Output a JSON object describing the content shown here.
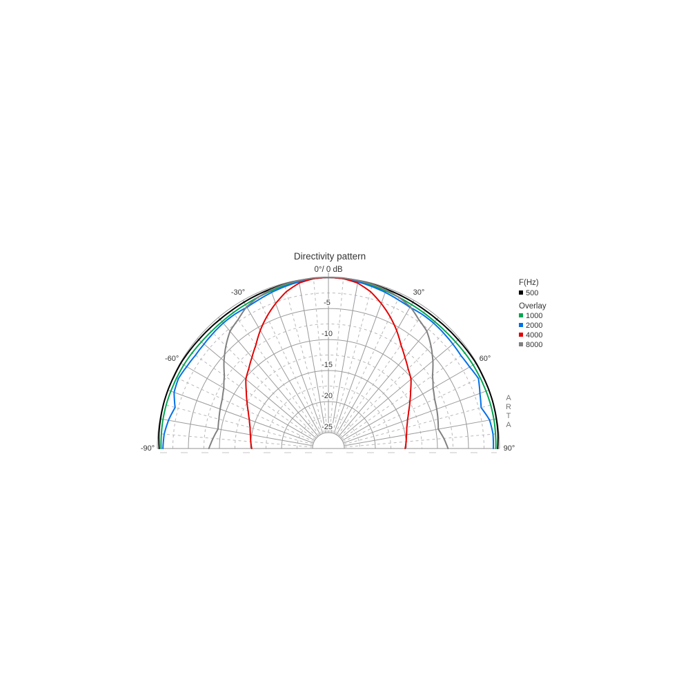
{
  "page": {
    "background": "#ffffff"
  },
  "chart_data": {
    "type": "polar-directivity",
    "title": "Directivity pattern",
    "top_label": "0°/ 0 dB",
    "watermark": "ARTA",
    "axis": {
      "angle_min_deg": -90,
      "angle_max_deg": 90,
      "db_outer": 0,
      "db_inner_circle": -25,
      "solid_angle_step_deg": 10,
      "dashed_angle_step_deg": 5,
      "solid_db_step": 5,
      "dashed_db_step": 2.5,
      "db_tick_labels": [
        {
          "db": -5,
          "label": "-5"
        },
        {
          "db": -10,
          "label": "-10"
        },
        {
          "db": -15,
          "label": "-15"
        },
        {
          "db": -20,
          "label": "-20"
        },
        {
          "db": -25,
          "label": "-25"
        }
      ],
      "angle_tick_labels": [
        {
          "angle": -30,
          "label": "-30°"
        },
        {
          "angle": 30,
          "label": "30°"
        },
        {
          "angle": -60,
          "label": "-60°"
        },
        {
          "angle": 60,
          "label": "60°"
        },
        {
          "angle": -90,
          "label": "-90°"
        },
        {
          "angle": 90,
          "label": "90°"
        }
      ]
    },
    "colors": {
      "grid_solid": "#999999",
      "grid_dashed": "#b8b8b8",
      "baseline": "#909090",
      "under_dash": "#c4c4c4",
      "label_text": "#333333"
    },
    "legend": {
      "header": "F(Hz)",
      "primary": {
        "label": "500",
        "color": "#000000"
      },
      "overlay_header": "Overlay",
      "overlays": [
        {
          "label": "1000",
          "color": "#00a650"
        },
        {
          "label": "2000",
          "color": "#0070e8"
        },
        {
          "label": "4000",
          "color": "#e30000"
        },
        {
          "label": "8000",
          "color": "#808080"
        }
      ]
    },
    "angles_deg": [
      -90,
      -85,
      -80,
      -75,
      -70,
      -65,
      -60,
      -55,
      -50,
      -45,
      -40,
      -35,
      -30,
      -25,
      -20,
      -15,
      -10,
      -5,
      0,
      5,
      10,
      15,
      20,
      25,
      30,
      35,
      40,
      45,
      50,
      55,
      60,
      65,
      70,
      75,
      80,
      85,
      90
    ],
    "series": [
      {
        "name": "500",
        "color": "#000000",
        "db": [
          -0.3,
          -0.15,
          -0.1,
          -0.05,
          -0.05,
          -0.1,
          -0.1,
          -0.2,
          -0.3,
          -0.35,
          -0.4,
          -0.4,
          -0.35,
          -0.3,
          -0.25,
          -0.15,
          -0.1,
          -0.05,
          0,
          -0.05,
          -0.1,
          -0.15,
          -0.25,
          -0.3,
          -0.35,
          -0.4,
          -0.4,
          -0.35,
          -0.3,
          -0.2,
          -0.1,
          -0.1,
          -0.05,
          -0.05,
          -0.1,
          -0.15,
          -0.3
        ]
      },
      {
        "name": "1000",
        "color": "#00a650",
        "db": [
          -0.6,
          -0.55,
          -0.5,
          -0.5,
          -0.55,
          -0.6,
          -0.65,
          -0.75,
          -0.85,
          -0.9,
          -0.9,
          -0.85,
          -0.8,
          -0.7,
          -0.55,
          -0.4,
          -0.25,
          -0.1,
          0,
          -0.1,
          -0.25,
          -0.4,
          -0.55,
          -0.7,
          -0.8,
          -0.85,
          -0.9,
          -0.9,
          -0.85,
          -0.75,
          -0.65,
          -0.6,
          -0.55,
          -0.5,
          -0.5,
          -0.55,
          -0.6
        ]
      },
      {
        "name": "2000",
        "color": "#0070e8",
        "db": [
          -0.9,
          -1.0,
          -1.4,
          -2.0,
          -1.1,
          -0.9,
          -1.2,
          -1.4,
          -1.4,
          -1.3,
          -1.2,
          -1.2,
          -1.3,
          -1.1,
          -0.8,
          -0.55,
          -0.3,
          -0.1,
          0,
          -0.1,
          -0.3,
          -0.55,
          -0.8,
          -1.1,
          -1.3,
          -1.2,
          -1.2,
          -1.3,
          -1.4,
          -1.5,
          -1.3,
          -0.9,
          -1.6,
          -2.1,
          -1.2,
          -0.95,
          -1.0
        ]
      },
      {
        "name": "4000",
        "color": "#e30000",
        "db": [
          -15.2,
          -15.0,
          -14.8,
          -14.5,
          -14.0,
          -13.3,
          -12.4,
          -11.4,
          -10.2,
          -9.4,
          -8.4,
          -7.2,
          -5.6,
          -4.1,
          -2.7,
          -1.4,
          -0.5,
          -0.1,
          0,
          -0.1,
          -0.5,
          -1.4,
          -2.7,
          -4.1,
          -5.6,
          -7.2,
          -8.4,
          -9.4,
          -10.2,
          -11.4,
          -12.4,
          -13.3,
          -14.0,
          -14.5,
          -14.8,
          -15.0,
          -15.2
        ]
      },
      {
        "name": "8000",
        "color": "#808080",
        "db": [
          -8.3,
          -8.9,
          -9.5,
          -9.3,
          -9.0,
          -8.7,
          -8.1,
          -7.1,
          -5.6,
          -4.2,
          -2.9,
          -2.2,
          -1.2,
          -0.7,
          -0.4,
          -0.2,
          -0.1,
          0,
          0,
          0,
          -0.1,
          -0.2,
          -0.4,
          -0.7,
          -1.2,
          -2.2,
          -2.9,
          -4.2,
          -5.6,
          -7.1,
          -8.1,
          -8.7,
          -9.0,
          -9.3,
          -9.6,
          -8.9,
          -8.3
        ]
      }
    ]
  }
}
